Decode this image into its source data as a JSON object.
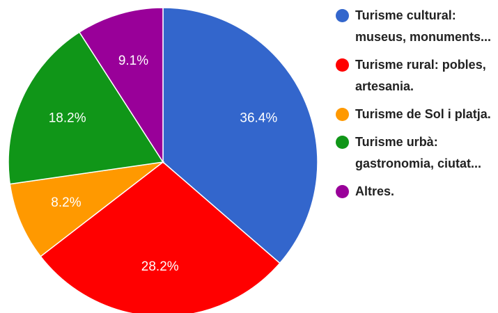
{
  "chart_data": {
    "type": "pie",
    "categories": [
      "Turisme cultural: museus, monuments...",
      "Turisme rural: pobles, artesania.",
      "Turisme de Sol i platja.",
      "Turisme urbà: gastronomia, ciutat...",
      "Altres."
    ],
    "values": [
      36.4,
      28.2,
      8.2,
      18.2,
      9.1
    ],
    "value_labels": [
      "36.4%",
      "28.2%",
      "8.2%",
      "18.2%",
      "9.1%"
    ],
    "colors": [
      "#3366cc",
      "#ff0000",
      "#ff9900",
      "#109618",
      "#990099"
    ],
    "legend": "right"
  }
}
